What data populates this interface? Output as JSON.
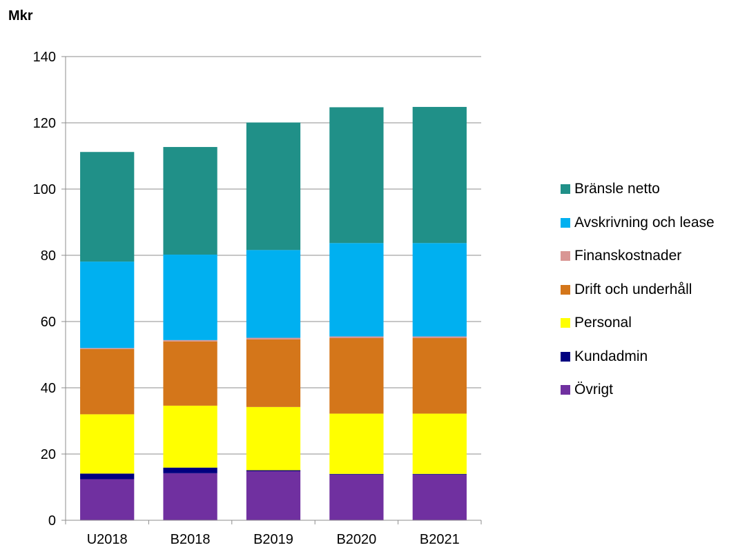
{
  "chart_data": {
    "type": "bar",
    "stacked": true,
    "unit_label": "Mkr",
    "categories": [
      "U2018",
      "B2018",
      "B2019",
      "B2020",
      "B2021"
    ],
    "series": [
      {
        "name": "Övrigt",
        "color": "#7030A0",
        "values": [
          12.4,
          14.2,
          14.8,
          13.8,
          13.8
        ]
      },
      {
        "name": "Kundadmin",
        "color": "#000080",
        "values": [
          1.7,
          1.7,
          0.3,
          0.2,
          0.2
        ]
      },
      {
        "name": "Personal",
        "color": "#FFFF00",
        "values": [
          17.9,
          18.7,
          19.1,
          18.2,
          18.2
        ]
      },
      {
        "name": "Drift och underhåll",
        "color": "#D4761A",
        "values": [
          19.7,
          19.4,
          20.4,
          22.8,
          22.8
        ]
      },
      {
        "name": "Finanskostnader",
        "color": "#D99694",
        "values": [
          0.3,
          0.4,
          0.5,
          0.5,
          0.5
        ]
      },
      {
        "name": "Avskrivning och lease",
        "color": "#00B0F0",
        "values": [
          26.1,
          25.8,
          26.5,
          28.2,
          28.2
        ]
      },
      {
        "name": "Bränsle netto",
        "color": "#209088",
        "values": [
          33.1,
          32.5,
          38.5,
          41.0,
          41.1
        ]
      }
    ],
    "ylim": [
      0,
      140
    ],
    "yticks": [
      0,
      20,
      40,
      60,
      80,
      100,
      120,
      140
    ],
    "grid": true,
    "legend_position": "right"
  }
}
